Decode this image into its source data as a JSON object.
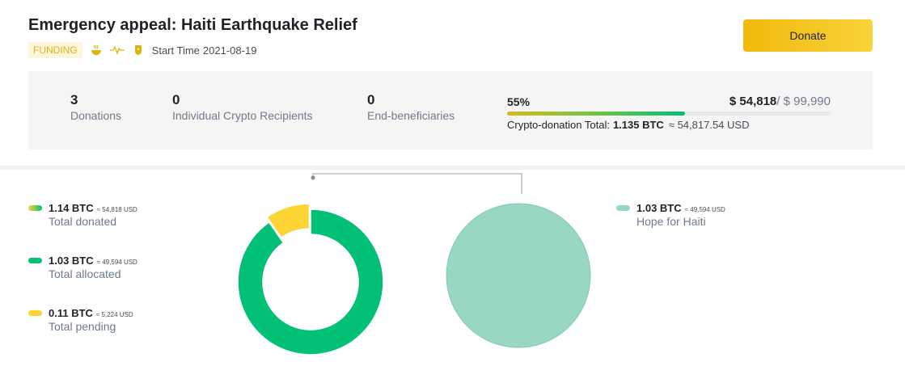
{
  "header": {
    "title": "Emergency appeal: Haiti Earthquake Relief",
    "tag": "FUNDING",
    "icons": [
      "bowl-icon",
      "heartbeat-icon",
      "badge-icon"
    ],
    "start_label": "Start Time",
    "start_date": "2021-08-19",
    "donate_label": "Donate"
  },
  "stats": {
    "donations": {
      "value": "3",
      "label": "Donations"
    },
    "recipients": {
      "value": "0",
      "label": "Individual Crypto Recipients"
    },
    "beneficiaries": {
      "value": "0",
      "label": "End-beneficiaries"
    },
    "progress_label": "55%",
    "progress_fraction": 0.55,
    "raised": "$ 54,818",
    "goal": "/ $ 99,990",
    "total_label": "Crypto-donation Total:",
    "total_btc": "1.135 BTC",
    "total_usd": "≈ 54,817.54 USD"
  },
  "legend_left": [
    {
      "btc": "1.14 BTC",
      "usd": "≈ 54,818 USD",
      "label": "Total donated",
      "color": "gradient"
    },
    {
      "btc": "1.03 BTC",
      "usd": "≈ 49,594 USD",
      "label": "Total allocated",
      "color": "#02c076"
    },
    {
      "btc": "0.11 BTC",
      "usd": "≈ 5,224 USD",
      "label": "Total pending",
      "color": "#fcd535"
    }
  ],
  "legend_right": [
    {
      "btc": "1.03 BTC",
      "usd": "≈ 49,594 USD",
      "label": "Hope for Haiti",
      "color": "#9ad7c3"
    }
  ],
  "chart_data": [
    {
      "type": "pie",
      "style": "donut",
      "categories": [
        "Total allocated",
        "Total pending"
      ],
      "values": [
        1.03,
        0.11
      ],
      "colors": [
        "#02c076",
        "#fcd535"
      ],
      "exploded": "Total pending"
    },
    {
      "type": "pie",
      "categories": [
        "Hope for Haiti"
      ],
      "values": [
        1.03
      ],
      "colors": [
        "#9ad7c3"
      ]
    }
  ],
  "colors": {
    "accent": "#f0b90b",
    "green": "#02c076",
    "yellow": "#fcd535",
    "teal": "#9ad7c3"
  }
}
